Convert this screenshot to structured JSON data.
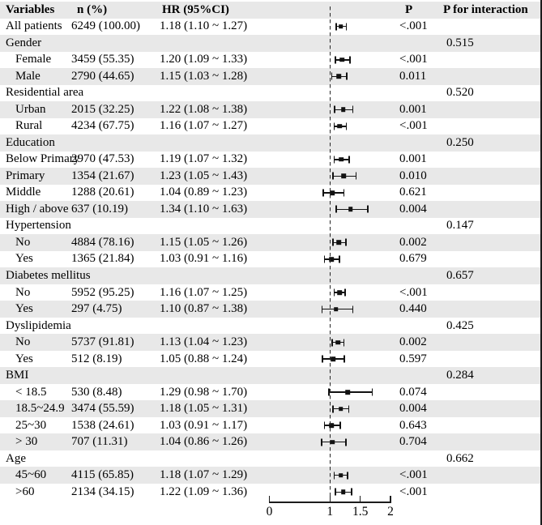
{
  "chart_data": {
    "type": "scatter",
    "subtype": "forest-plot",
    "title": "",
    "xlabel": "",
    "ylabel": "",
    "legend": "none",
    "grid": false,
    "colors": {
      "stripe": "#e8e8e8",
      "text": "#000000",
      "marker": "#121212"
    },
    "columns": {
      "variables": "Variables",
      "n": "n (%)",
      "hr": "HR (95%CI)",
      "p": "P",
      "p_interaction": "P for interaction"
    },
    "x_axis": {
      "min": 0,
      "max": 2,
      "reference_line": 1,
      "ticks": [
        {
          "value": 0,
          "label": "0"
        },
        {
          "value": 1,
          "label": "1"
        },
        {
          "value": 1.5,
          "label": "1.5"
        },
        {
          "value": 2,
          "label": "2"
        }
      ]
    },
    "rows": [
      {
        "label": "All patients",
        "indent": false,
        "n": "6249 (100.00)",
        "hr_text": "1.18 (1.10 ~ 1.27)",
        "hr": 1.18,
        "low": 1.1,
        "high": 1.27,
        "p": "<.001",
        "p_interaction": ""
      },
      {
        "label": "Gender",
        "indent": false,
        "n": "",
        "hr_text": "",
        "hr": null,
        "low": null,
        "high": null,
        "p": "",
        "p_interaction": "0.515"
      },
      {
        "label": "Female",
        "indent": true,
        "n": "3459 (55.35)",
        "hr_text": "1.20 (1.09 ~ 1.33)",
        "hr": 1.2,
        "low": 1.09,
        "high": 1.33,
        "p": "<.001",
        "p_interaction": ""
      },
      {
        "label": "Male",
        "indent": true,
        "n": "2790 (44.65)",
        "hr_text": "1.15 (1.03 ~ 1.28)",
        "hr": 1.15,
        "low": 1.03,
        "high": 1.28,
        "p": "0.011",
        "p_interaction": ""
      },
      {
        "label": "Residential area",
        "indent": false,
        "n": "",
        "hr_text": "",
        "hr": null,
        "low": null,
        "high": null,
        "p": "",
        "p_interaction": "0.520"
      },
      {
        "label": "Urban",
        "indent": true,
        "n": "2015 (32.25)",
        "hr_text": "1.22 (1.08 ~ 1.38)",
        "hr": 1.22,
        "low": 1.08,
        "high": 1.38,
        "p": "0.001",
        "p_interaction": ""
      },
      {
        "label": "Rural",
        "indent": true,
        "n": "4234 (67.75)",
        "hr_text": "1.16 (1.07 ~ 1.27)",
        "hr": 1.16,
        "low": 1.07,
        "high": 1.27,
        "p": "<.001",
        "p_interaction": ""
      },
      {
        "label": "Education",
        "indent": false,
        "n": "",
        "hr_text": "",
        "hr": null,
        "low": null,
        "high": null,
        "p": "",
        "p_interaction": "0.250"
      },
      {
        "label": "Below Primary",
        "indent": false,
        "n": "2970 (47.53)",
        "hr_text": "1.19 (1.07 ~ 1.32)",
        "hr": 1.19,
        "low": 1.07,
        "high": 1.32,
        "p": "0.001",
        "p_interaction": ""
      },
      {
        "label": "Primary",
        "indent": false,
        "n": "1354 (21.67)",
        "hr_text": "1.23 (1.05 ~ 1.43)",
        "hr": 1.23,
        "low": 1.05,
        "high": 1.43,
        "p": "0.010",
        "p_interaction": ""
      },
      {
        "label": "Middle",
        "indent": false,
        "n": "1288 (20.61)",
        "hr_text": "1.04 (0.89 ~ 1.23)",
        "hr": 1.04,
        "low": 0.89,
        "high": 1.23,
        "p": "0.621",
        "p_interaction": ""
      },
      {
        "label": "High / above",
        "indent": false,
        "n": "637 (10.19)",
        "hr_text": "1.34 (1.10 ~ 1.63)",
        "hr": 1.34,
        "low": 1.1,
        "high": 1.63,
        "p": "0.004",
        "p_interaction": ""
      },
      {
        "label": "Hypertension",
        "indent": false,
        "n": "",
        "hr_text": "",
        "hr": null,
        "low": null,
        "high": null,
        "p": "",
        "p_interaction": "0.147"
      },
      {
        "label": "No",
        "indent": true,
        "n": "4884 (78.16)",
        "hr_text": "1.15 (1.05 ~ 1.26)",
        "hr": 1.15,
        "low": 1.05,
        "high": 1.26,
        "p": "0.002",
        "p_interaction": ""
      },
      {
        "label": "Yes",
        "indent": true,
        "n": "1365 (21.84)",
        "hr_text": "1.03 (0.91 ~ 1.16)",
        "hr": 1.03,
        "low": 0.91,
        "high": 1.16,
        "p": "0.679",
        "p_interaction": ""
      },
      {
        "label": "Diabetes mellitus",
        "indent": false,
        "n": "",
        "hr_text": "",
        "hr": null,
        "low": null,
        "high": null,
        "p": "",
        "p_interaction": "0.657"
      },
      {
        "label": "No",
        "indent": true,
        "n": "5952 (95.25)",
        "hr_text": "1.16 (1.07 ~ 1.25)",
        "hr": 1.16,
        "low": 1.07,
        "high": 1.25,
        "p": "<.001",
        "p_interaction": ""
      },
      {
        "label": "Yes",
        "indent": true,
        "n": "297 (4.75)",
        "hr_text": "1.10 (0.87 ~ 1.38)",
        "hr": 1.1,
        "low": 0.87,
        "high": 1.38,
        "p": "0.440",
        "p_interaction": ""
      },
      {
        "label": "Dyslipidemia",
        "indent": false,
        "n": "",
        "hr_text": "",
        "hr": null,
        "low": null,
        "high": null,
        "p": "",
        "p_interaction": "0.425"
      },
      {
        "label": "No",
        "indent": true,
        "n": "5737 (91.81)",
        "hr_text": "1.13 (1.04 ~ 1.23)",
        "hr": 1.13,
        "low": 1.04,
        "high": 1.23,
        "p": "0.002",
        "p_interaction": ""
      },
      {
        "label": "Yes",
        "indent": true,
        "n": "512 (8.19)",
        "hr_text": "1.05 (0.88 ~ 1.24)",
        "hr": 1.05,
        "low": 0.88,
        "high": 1.24,
        "p": "0.597",
        "p_interaction": ""
      },
      {
        "label": "BMI",
        "indent": false,
        "n": "",
        "hr_text": "",
        "hr": null,
        "low": null,
        "high": null,
        "p": "",
        "p_interaction": "0.284"
      },
      {
        "label": "< 18.5",
        "indent": true,
        "n": "530 (8.48)",
        "hr_text": "1.29 (0.98 ~ 1.70)",
        "hr": 1.29,
        "low": 0.98,
        "high": 1.7,
        "p": "0.074",
        "p_interaction": ""
      },
      {
        "label": "18.5~24.9",
        "indent": true,
        "n": "3474 (55.59)",
        "hr_text": "1.18 (1.05 ~ 1.31)",
        "hr": 1.18,
        "low": 1.05,
        "high": 1.31,
        "p": "0.004",
        "p_interaction": ""
      },
      {
        "label": "25~30",
        "indent": true,
        "n": "1538 (24.61)",
        "hr_text": "1.03 (0.91 ~ 1.17)",
        "hr": 1.03,
        "low": 0.91,
        "high": 1.17,
        "p": "0.643",
        "p_interaction": ""
      },
      {
        "label": "> 30",
        "indent": true,
        "n": "707 (11.31)",
        "hr_text": "1.04 (0.86 ~ 1.26)",
        "hr": 1.04,
        "low": 0.86,
        "high": 1.26,
        "p": "0.704",
        "p_interaction": ""
      },
      {
        "label": "Age",
        "indent": false,
        "n": "",
        "hr_text": "",
        "hr": null,
        "low": null,
        "high": null,
        "p": "",
        "p_interaction": "0.662"
      },
      {
        "label": "45~60",
        "indent": true,
        "n": "4115 (65.85)",
        "hr_text": "1.18 (1.07 ~ 1.29)",
        "hr": 1.18,
        "low": 1.07,
        "high": 1.29,
        "p": "<.001",
        "p_interaction": ""
      },
      {
        "label": ">60",
        "indent": true,
        "n": "2134 (34.15)",
        "hr_text": "1.22 (1.09 ~ 1.36)",
        "hr": 1.22,
        "low": 1.09,
        "high": 1.36,
        "p": "<.001",
        "p_interaction": ""
      }
    ]
  }
}
